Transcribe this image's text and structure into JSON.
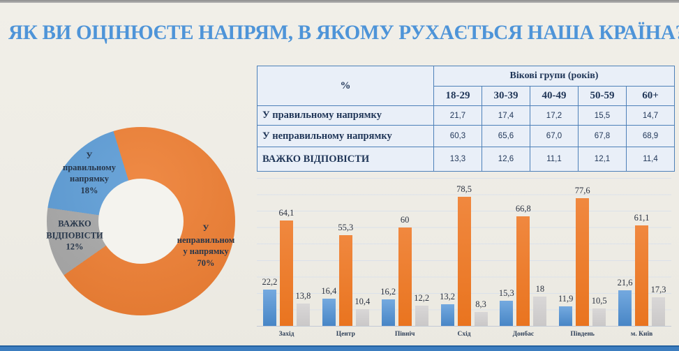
{
  "page": {
    "title": "ЯК ВИ ОЦІНЮЄТЕ  НАПРЯМ, В ЯКОМУ РУХАЄТЬСЯ НАША КРАЇНА?"
  },
  "colors": {
    "background": "#EFEDE6",
    "title_blue": "#4E94D8",
    "series_blue": "#5B9BD5",
    "series_orange": "#ED7D31",
    "series_gray_donut": "#A6A6A6",
    "series_gray_bars": "#D2D0D0",
    "table_border": "#4D80B8",
    "table_cell_bg": "#E9EFF8",
    "dark_text": "#1F3557",
    "top_strip": "#9D9D9D",
    "bottom_strip": "#3C7DBF"
  },
  "table": {
    "corner_label": "%",
    "group_header": "Вікові групи  (років)",
    "age_columns": [
      "18-29",
      "30-39",
      "40-49",
      "50-59",
      "60+"
    ],
    "rows": [
      {
        "label": "У правильному напрямку",
        "values": [
          "21,7",
          "17,4",
          "17,2",
          "15,5",
          "14,7"
        ]
      },
      {
        "label": "У неправильному напрямку",
        "values": [
          "60,3",
          "65,6",
          "67,0",
          "67,8",
          "68,9"
        ]
      },
      {
        "label": "ВАЖКО ВІДПОВІСТИ",
        "values": [
          "13,3",
          "12,6",
          "11,1",
          "12,1",
          "11,4"
        ]
      }
    ]
  },
  "chart_data": [
    {
      "type": "pie",
      "subtype": "donut",
      "hole_ratio": 0.45,
      "start_angle_deg": 343,
      "slices": [
        {
          "label": "У неправильному напрямку",
          "value": 70,
          "color": "#ED7D31",
          "display": "У\nнеправильном\nу напрямку\n70%"
        },
        {
          "label": "ВАЖКО ВІДПОВІСТИ",
          "value": 12,
          "color": "#A6A6A6",
          "display": "ВАЖКО\nВІДПОВІСТИ\n12%"
        },
        {
          "label": "У правильному напрямку",
          "value": 18,
          "color": "#5B9BD5",
          "display": "У\nправильному\nнапрямку\n18%"
        }
      ]
    },
    {
      "type": "bar",
      "categories": [
        "Захід",
        "Центр",
        "Північ",
        "Схід",
        "Донбас",
        "Південь",
        "м. Київ"
      ],
      "series": [
        {
          "id": "correct-direction",
          "name": "У правильному напрямку",
          "color": "#5B9BD5",
          "values": [
            22.2,
            16.4,
            16.2,
            13.2,
            15.3,
            11.9,
            21.6
          ],
          "display": [
            "22,2",
            "16,4",
            "16,2",
            "13,2",
            "15,3",
            "11,9",
            "21,6"
          ]
        },
        {
          "id": "wrong-direction",
          "name": "У неправильному напрямку",
          "color": "#ED7D31",
          "values": [
            64.1,
            55.3,
            60,
            78.5,
            66.8,
            77.6,
            61.1
          ],
          "display": [
            "64,1",
            "55,3",
            "60",
            "78,5",
            "66,8",
            "77,6",
            "61,1"
          ]
        },
        {
          "id": "hard-to-say",
          "name": "ВАЖКО ВІДПОВІСТИ",
          "color": "#D2D0D0",
          "values": [
            13.8,
            10.4,
            12.2,
            8.3,
            18,
            10.5,
            17.3
          ],
          "display": [
            "13,8",
            "10,4",
            "12,2",
            "8,3",
            "18",
            "10,5",
            "17,3"
          ]
        }
      ],
      "ylim": [
        0,
        90
      ],
      "grid_step": 10,
      "grid": true,
      "legend": "none",
      "data_labels": true
    }
  ]
}
